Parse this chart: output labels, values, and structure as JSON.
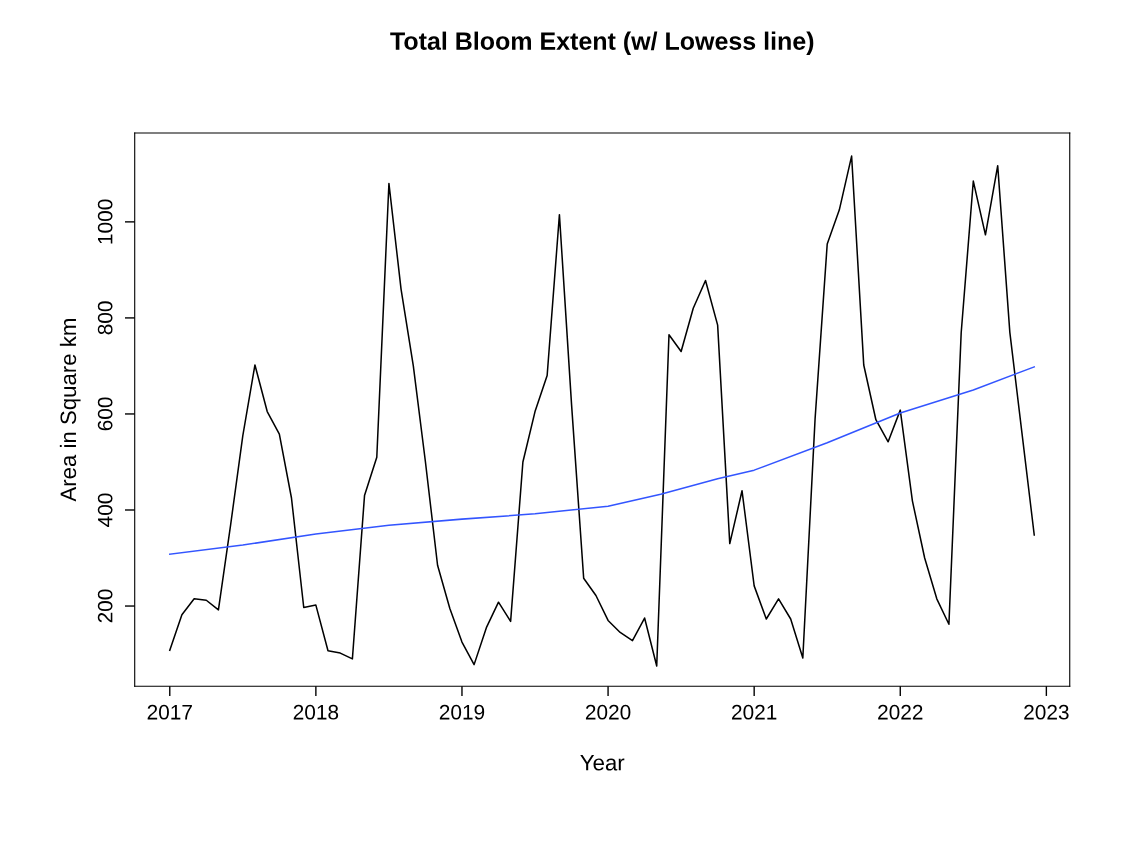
{
  "chart_data": {
    "type": "line",
    "title": "Total Bloom Extent (w/ Lowess line)",
    "xlabel": "Year",
    "ylabel": "Area in Square km",
    "series": [
      {
        "color": "#000000",
        "x": [
          2017,
          2017.083,
          2017.167,
          2017.25,
          2017.333,
          2017.417,
          2017.5,
          2017.583,
          2017.667,
          2017.75,
          2017.833,
          2017.917,
          2018,
          2018.083,
          2018.167,
          2018.25,
          2018.333,
          2018.417,
          2018.5,
          2018.583,
          2018.667,
          2018.75,
          2018.833,
          2018.917,
          2019,
          2019.083,
          2019.167,
          2019.25,
          2019.333,
          2019.417,
          2019.5,
          2019.583,
          2019.667,
          2019.75,
          2019.833,
          2019.917,
          2020,
          2020.083,
          2020.167,
          2020.25,
          2020.333,
          2020.417,
          2020.5,
          2020.583,
          2020.667,
          2020.75,
          2020.833,
          2020.917,
          2021,
          2021.083,
          2021.167,
          2021.25,
          2021.333,
          2021.417,
          2021.5,
          2021.583,
          2021.667,
          2021.75,
          2021.833,
          2021.917,
          2022,
          2022.083,
          2022.167,
          2022.25,
          2022.333,
          2022.417,
          2022.5,
          2022.583,
          2022.667,
          2022.75,
          2022.833,
          2022.917
        ],
        "values": [
          108,
          182,
          215,
          212,
          192,
          370,
          555,
          702,
          605,
          558,
          425,
          197,
          202,
          107,
          102,
          90,
          430,
          510,
          1080,
          860,
          700,
          500,
          285,
          195,
          125,
          78,
          155,
          208,
          168,
          500,
          605,
          680,
          1015,
          620,
          258,
          222,
          170,
          145,
          128,
          175,
          75,
          765,
          730,
          820,
          878,
          785,
          330,
          440,
          242,
          173,
          215,
          173,
          92,
          590,
          954,
          1025,
          1137,
          702,
          588,
          542,
          608,
          419,
          300,
          215,
          162,
          769,
          1085,
          973,
          1117,
          770,
          560,
          348
        ]
      },
      {
        "color": "#3355ff",
        "x": [
          2017,
          2017.5,
          2018,
          2018.5,
          2019,
          2019.5,
          2020,
          2020.36,
          2020.75,
          2021,
          2021.5,
          2022,
          2022.5,
          2022.917
        ],
        "values": [
          308,
          327,
          350,
          368,
          381,
          392,
          408,
          433,
          465,
          483,
          540,
          602,
          650,
          698
        ]
      }
    ],
    "xlim": [
      2016.76,
      2023.16
    ],
    "ylim": [
      33,
      1185
    ],
    "xticks": [
      2017,
      2018,
      2019,
      2020,
      2021,
      2022,
      2023
    ],
    "yticks": [
      200,
      400,
      600,
      800,
      1000
    ],
    "grid": false
  }
}
